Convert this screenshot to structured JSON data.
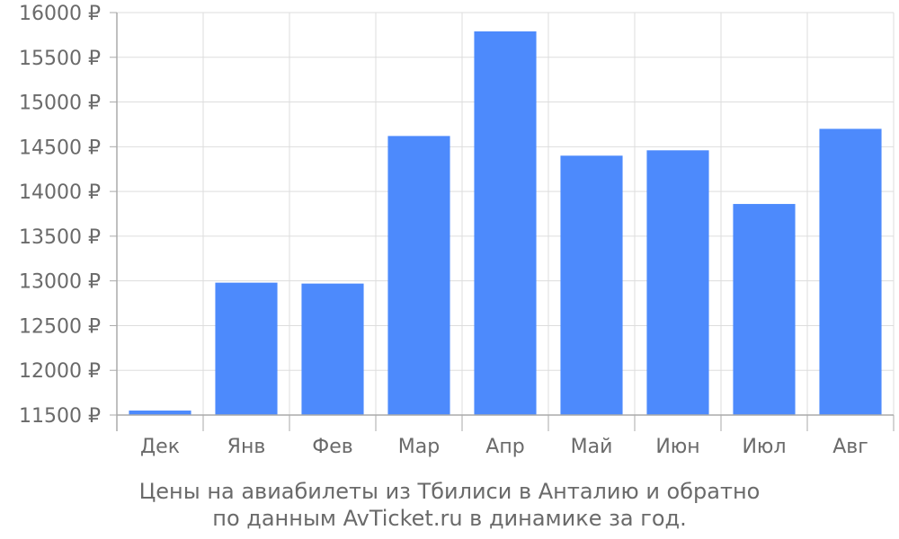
{
  "chart_data": {
    "type": "bar",
    "categories": [
      "Дек",
      "Янв",
      "Фев",
      "Мар",
      "Апр",
      "Май",
      "Июн",
      "Июл",
      "Авг"
    ],
    "values": [
      11550,
      12980,
      12970,
      14620,
      15790,
      14400,
      14460,
      13860,
      14700
    ],
    "ylim": [
      11500,
      16000
    ],
    "yticks": [
      11500,
      12000,
      12500,
      13000,
      13500,
      14000,
      14500,
      15000,
      15500,
      16000
    ],
    "ytick_labels": [
      "11500 ₽",
      "12000 ₽",
      "12500 ₽",
      "13000 ₽",
      "13500 ₽",
      "14000 ₽",
      "14500 ₽",
      "15000 ₽",
      "15500 ₽",
      "16000 ₽"
    ],
    "caption_line1": "Цены на авиабилеты из Тбилиси в Анталию и обратно",
    "caption_line2": "по данным AvTicket.ru в динамике за год.",
    "grid": true,
    "legend": "none",
    "bar_color": "#4d8afc",
    "grid_color": "#dddddd",
    "axis_color": "#aaaaaa",
    "text_color": "#6a6a6a"
  }
}
